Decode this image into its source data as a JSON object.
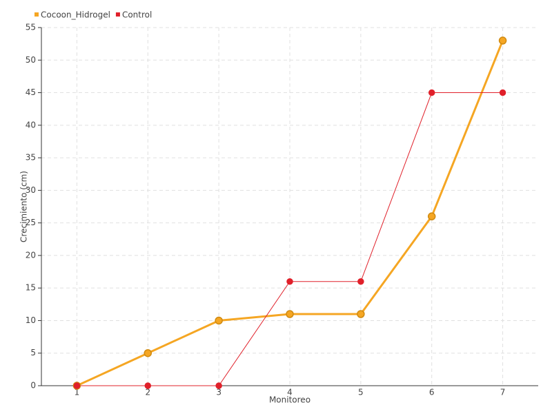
{
  "chart_data": {
    "type": "line",
    "x_label": "Monitoreo",
    "y_label": "Crecimiento (cm)",
    "categories": [
      "1",
      "2",
      "3",
      "4",
      "5",
      "6",
      "7"
    ],
    "series": [
      {
        "name": "Cocoon_Hidrogel",
        "color": "#f5a623",
        "values": [
          0,
          5,
          10,
          11,
          11,
          26,
          53
        ]
      },
      {
        "name": "Control",
        "color": "#e0202a",
        "values": [
          0,
          0,
          0,
          16,
          16,
          45,
          45
        ]
      }
    ],
    "ylim": [
      0,
      55
    ],
    "yticks": [
      0,
      5,
      10,
      15,
      20,
      25,
      30,
      35,
      40,
      45,
      50,
      55
    ],
    "grid": true,
    "legend": "top-left"
  }
}
